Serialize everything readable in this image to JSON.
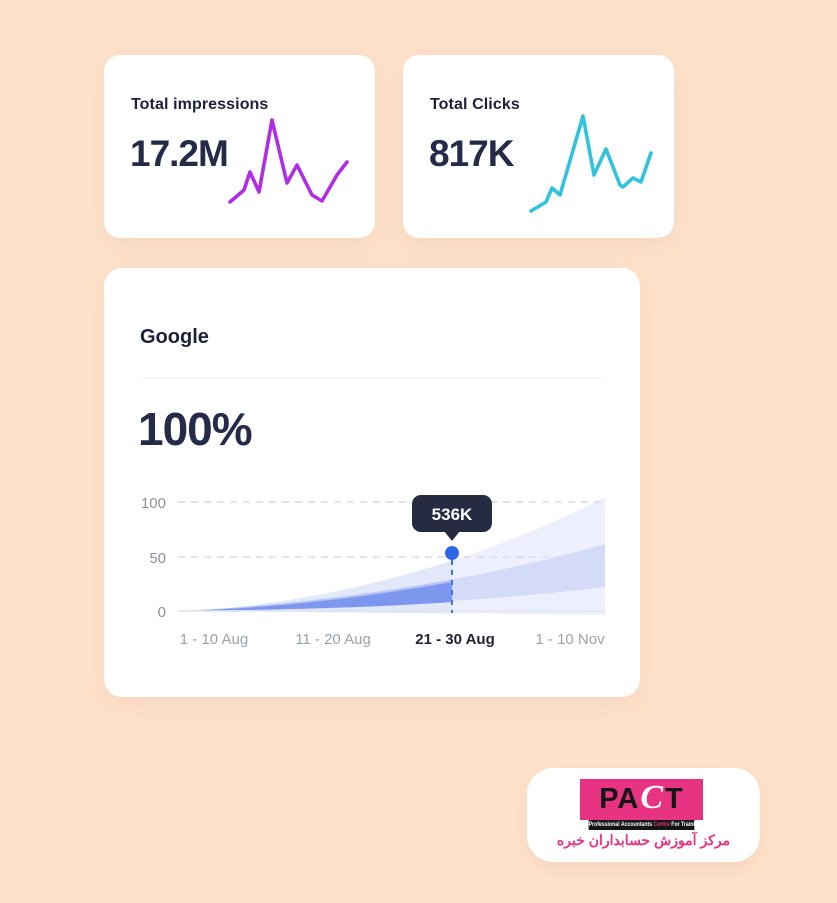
{
  "page": {
    "background": "#fee1ca"
  },
  "kpi_cards": [
    {
      "label": "Total impressions",
      "value": "17.2M",
      "line_color": "#b02de6",
      "spark_points": [
        [
          8,
          92
        ],
        [
          22,
          80
        ],
        [
          28,
          62
        ],
        [
          37,
          82
        ],
        [
          50,
          10
        ],
        [
          65,
          73
        ],
        [
          75,
          55
        ],
        [
          90,
          85
        ],
        [
          100,
          91
        ],
        [
          115,
          65
        ],
        [
          125,
          52
        ]
      ]
    },
    {
      "label": "Total Clicks",
      "value": "817K",
      "line_color": "#31c3dd",
      "spark_points": [
        [
          8,
          101
        ],
        [
          23,
          92
        ],
        [
          29,
          78
        ],
        [
          37,
          85
        ],
        [
          60,
          6
        ],
        [
          71,
          65
        ],
        [
          83,
          39
        ],
        [
          97,
          75
        ],
        [
          100,
          77
        ],
        [
          110,
          68
        ],
        [
          118,
          72
        ],
        [
          128,
          43
        ]
      ]
    }
  ],
  "google_card": {
    "title": "Google",
    "percent": "100%",
    "tooltip": "536K",
    "y_ticks": [
      "100",
      "50",
      "0"
    ],
    "x_ticks": [
      "1 - 10 Aug",
      "11 - 20 Aug",
      "21 - 30 Aug",
      "1 - 10 Nov"
    ],
    "active_x_tick": "21 - 30 Aug"
  },
  "chart_data": {
    "type": "area",
    "title": "Google",
    "headline_value": "100%",
    "x": [
      "1 - 10 Aug",
      "11 - 20 Aug",
      "21 - 30 Aug",
      "1 - 10 Nov"
    ],
    "ylim": [
      0,
      100
    ],
    "y_ticks": [
      0,
      50,
      100
    ],
    "grid": "dashed-horizontal",
    "legend": "none",
    "series": [
      {
        "name": "outer-band-upper",
        "values": [
          0,
          18,
          53,
          100
        ],
        "color": "#e2e7fa"
      },
      {
        "name": "mid-band-upper",
        "values": [
          0,
          12,
          38,
          61
        ],
        "color": "#b9c6f4"
      },
      {
        "name": "core-band-upper",
        "values": [
          0,
          8,
          26,
          null
        ],
        "color": "#7d96ee"
      }
    ],
    "selected_point": {
      "x": "21 - 30 Aug",
      "y": 53,
      "label": "536K"
    },
    "annotations": [
      "right of selection rendered faded (forecast)"
    ]
  },
  "sparkline_charts": [
    {
      "type": "line",
      "label": "Total impressions",
      "value": "17.2M",
      "color": "#b02de6",
      "values_relative": [
        20,
        32,
        50,
        30,
        100,
        38,
        55,
        26,
        20,
        45,
        58
      ]
    },
    {
      "type": "line",
      "label": "Total Clicks",
      "value": "817K",
      "color": "#31c3dd",
      "values_relative": [
        10,
        18,
        32,
        25,
        100,
        43,
        68,
        33,
        31,
        40,
        36,
        64
      ]
    }
  ],
  "logo": {
    "acronym_left": "PA",
    "acronym_c": "C",
    "acronym_right": "T",
    "tagline_pre": "Professional Accountants ",
    "tagline_highlight": "Centre",
    "tagline_post": " For Training",
    "persian": "مرکز آموزش حسابداران خبره",
    "pink": "#e73381",
    "black": "#151515"
  }
}
